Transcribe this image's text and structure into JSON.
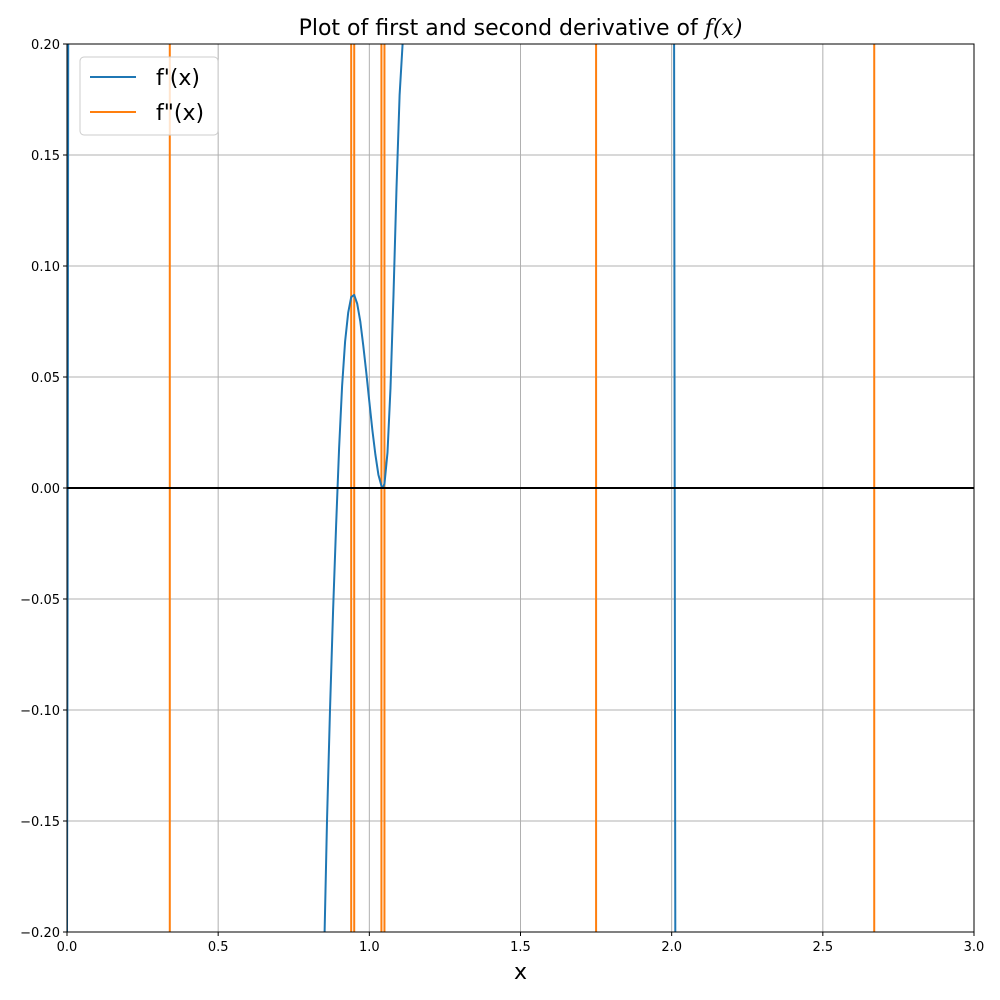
{
  "chart_data": {
    "type": "line",
    "title_prefix": "Plot of first and second derivative of ",
    "title_math": "f(x)",
    "xlabel": "x",
    "ylabel": "",
    "xlim": [
      0,
      3
    ],
    "ylim": [
      -0.2,
      0.2
    ],
    "grid": true,
    "legend_position": "top-left",
    "x_ticks": [
      0,
      0.5,
      1,
      1.5,
      2,
      2.5,
      3
    ],
    "x_tick_labels": [
      "0.0",
      "0.5",
      "1.0",
      "1.5",
      "2.0",
      "2.5",
      "3.0"
    ],
    "y_ticks": [
      -0.2,
      -0.15,
      -0.1,
      -0.05,
      0,
      0.05,
      0.1,
      0.15,
      0.2
    ],
    "y_tick_labels": [
      "−0.20",
      "−0.15",
      "−0.10",
      "−0.05",
      "0.00",
      "0.05",
      "0.10",
      "0.15",
      "0.20"
    ],
    "zero_line": {
      "y": 0,
      "color": "#000000"
    },
    "series": [
      {
        "name": "f'(x)",
        "color": "#1f77b4",
        "segments": [
          {
            "x": [
              0.0,
              0.002,
              0.004
            ],
            "y": [
              -0.2,
              -0.05,
              0.2
            ]
          },
          {
            "x": [
              0.852,
              0.86,
              0.87,
              0.88,
              0.89,
              0.9,
              0.91,
              0.92,
              0.93,
              0.94,
              0.95,
              0.96,
              0.97,
              0.98,
              0.99,
              1.0,
              1.01,
              1.02,
              1.03,
              1.04,
              1.045,
              1.05,
              1.06,
              1.07,
              1.08,
              1.09,
              1.1,
              1.11
            ],
            "y": [
              -0.2,
              -0.15,
              -0.1,
              -0.055,
              -0.017,
              0.018,
              0.046,
              0.066,
              0.079,
              0.086,
              0.087,
              0.083,
              0.075,
              0.064,
              0.052,
              0.039,
              0.026,
              0.015,
              0.006,
              0.001,
              0.0,
              0.002,
              0.016,
              0.045,
              0.087,
              0.135,
              0.177,
              0.2
            ]
          },
          {
            "x": [
              2.008,
              2.01,
              2.012
            ],
            "y": [
              0.2,
              0.0,
              -0.2
            ]
          }
        ]
      },
      {
        "name": "f\"(x)",
        "color": "#ff7f0e",
        "verticals": [
          0.34,
          0.94,
          0.95,
          1.04,
          1.05,
          1.75,
          2.67
        ]
      }
    ]
  }
}
